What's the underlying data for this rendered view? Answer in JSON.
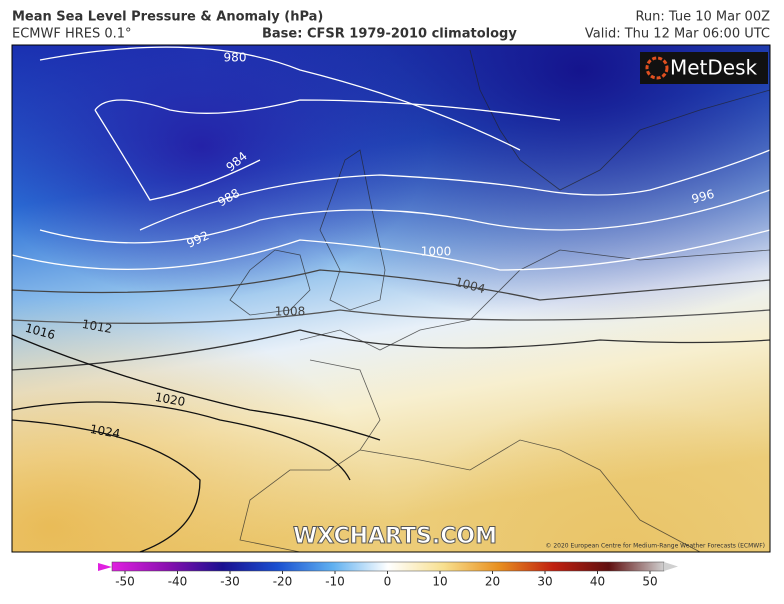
{
  "header": {
    "title": "Mean Sea Level Pressure & Anomaly (hPa)",
    "model": "ECMWF HRES 0.1°",
    "base": "Base: CFSR 1979-2010 climatology",
    "run": "Run: Tue 10 Mar 00Z",
    "valid": "Valid: Thu 12 Mar 06:00 UTC"
  },
  "logo": "MetDesk",
  "watermark": "WXCHARTS.COM",
  "copyright": "© 2020 European Centre for Medium-Range Weather Forecasts (ECMWF)",
  "contour_labels": [
    "980",
    "984",
    "988",
    "992",
    "996",
    "1000",
    "1004",
    "1008",
    "1012",
    "1016",
    "1020",
    "1024"
  ],
  "colorbar": {
    "ticks": [
      -50,
      -40,
      -30,
      -20,
      -10,
      0,
      10,
      20,
      30,
      40,
      50
    ]
  }
}
